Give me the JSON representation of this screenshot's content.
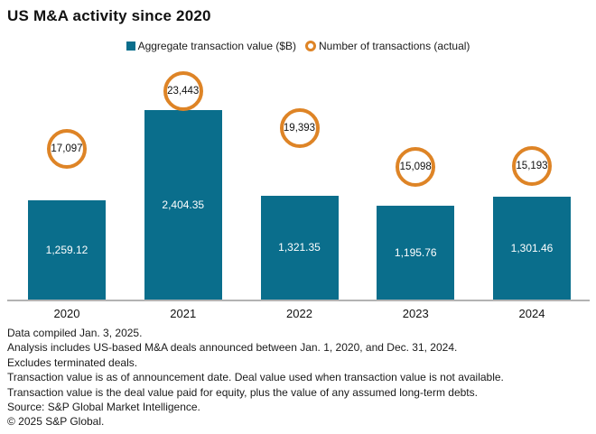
{
  "title": "US M&A activity since 2020",
  "legend": {
    "items": [
      {
        "label": "Aggregate transaction value ($B)",
        "marker": "square-icon",
        "color": "#0A6E8C"
      },
      {
        "label": "Number of transactions (actual)",
        "marker": "ring-icon",
        "color": "#DE8426"
      }
    ]
  },
  "chart_data": {
    "type": "bar",
    "title": "US M&A activity since 2020",
    "categories": [
      "2020",
      "2021",
      "2022",
      "2023",
      "2024"
    ],
    "series": [
      {
        "name": "Aggregate transaction value ($B)",
        "type": "bar",
        "values": [
          1259.12,
          2404.35,
          1321.35,
          1195.76,
          1301.46
        ],
        "value_labels": [
          "1,259.12",
          "2,404.35",
          "1,321.35",
          "1,195.76",
          "1,301.46"
        ],
        "color": "#0A6E8C",
        "label_color": "#ffffff"
      },
      {
        "name": "Number of transactions (actual)",
        "type": "point",
        "values": [
          17097,
          23443,
          19393,
          15098,
          15193
        ],
        "value_labels": [
          "17,097",
          "23,443",
          "19,393",
          "15,098",
          "15,193"
        ],
        "color": "#DE8426"
      }
    ],
    "legend_position": "top",
    "grid": false,
    "xlabel": "",
    "ylabel": ""
  },
  "footer": {
    "lines": [
      "Data compiled Jan. 3, 2025.",
      "Analysis includes US-based M&A deals announced between Jan. 1, 2020, and Dec. 31, 2024.",
      "Excludes terminated deals.",
      "Transaction value is as of announcement date. Deal value used when transaction value is not available.",
      "Transaction value is the deal value paid for equity, plus the value of any assumed long-term debts.",
      "Source: S&P Global Market Intelligence.",
      "© 2025 S&P Global."
    ]
  }
}
